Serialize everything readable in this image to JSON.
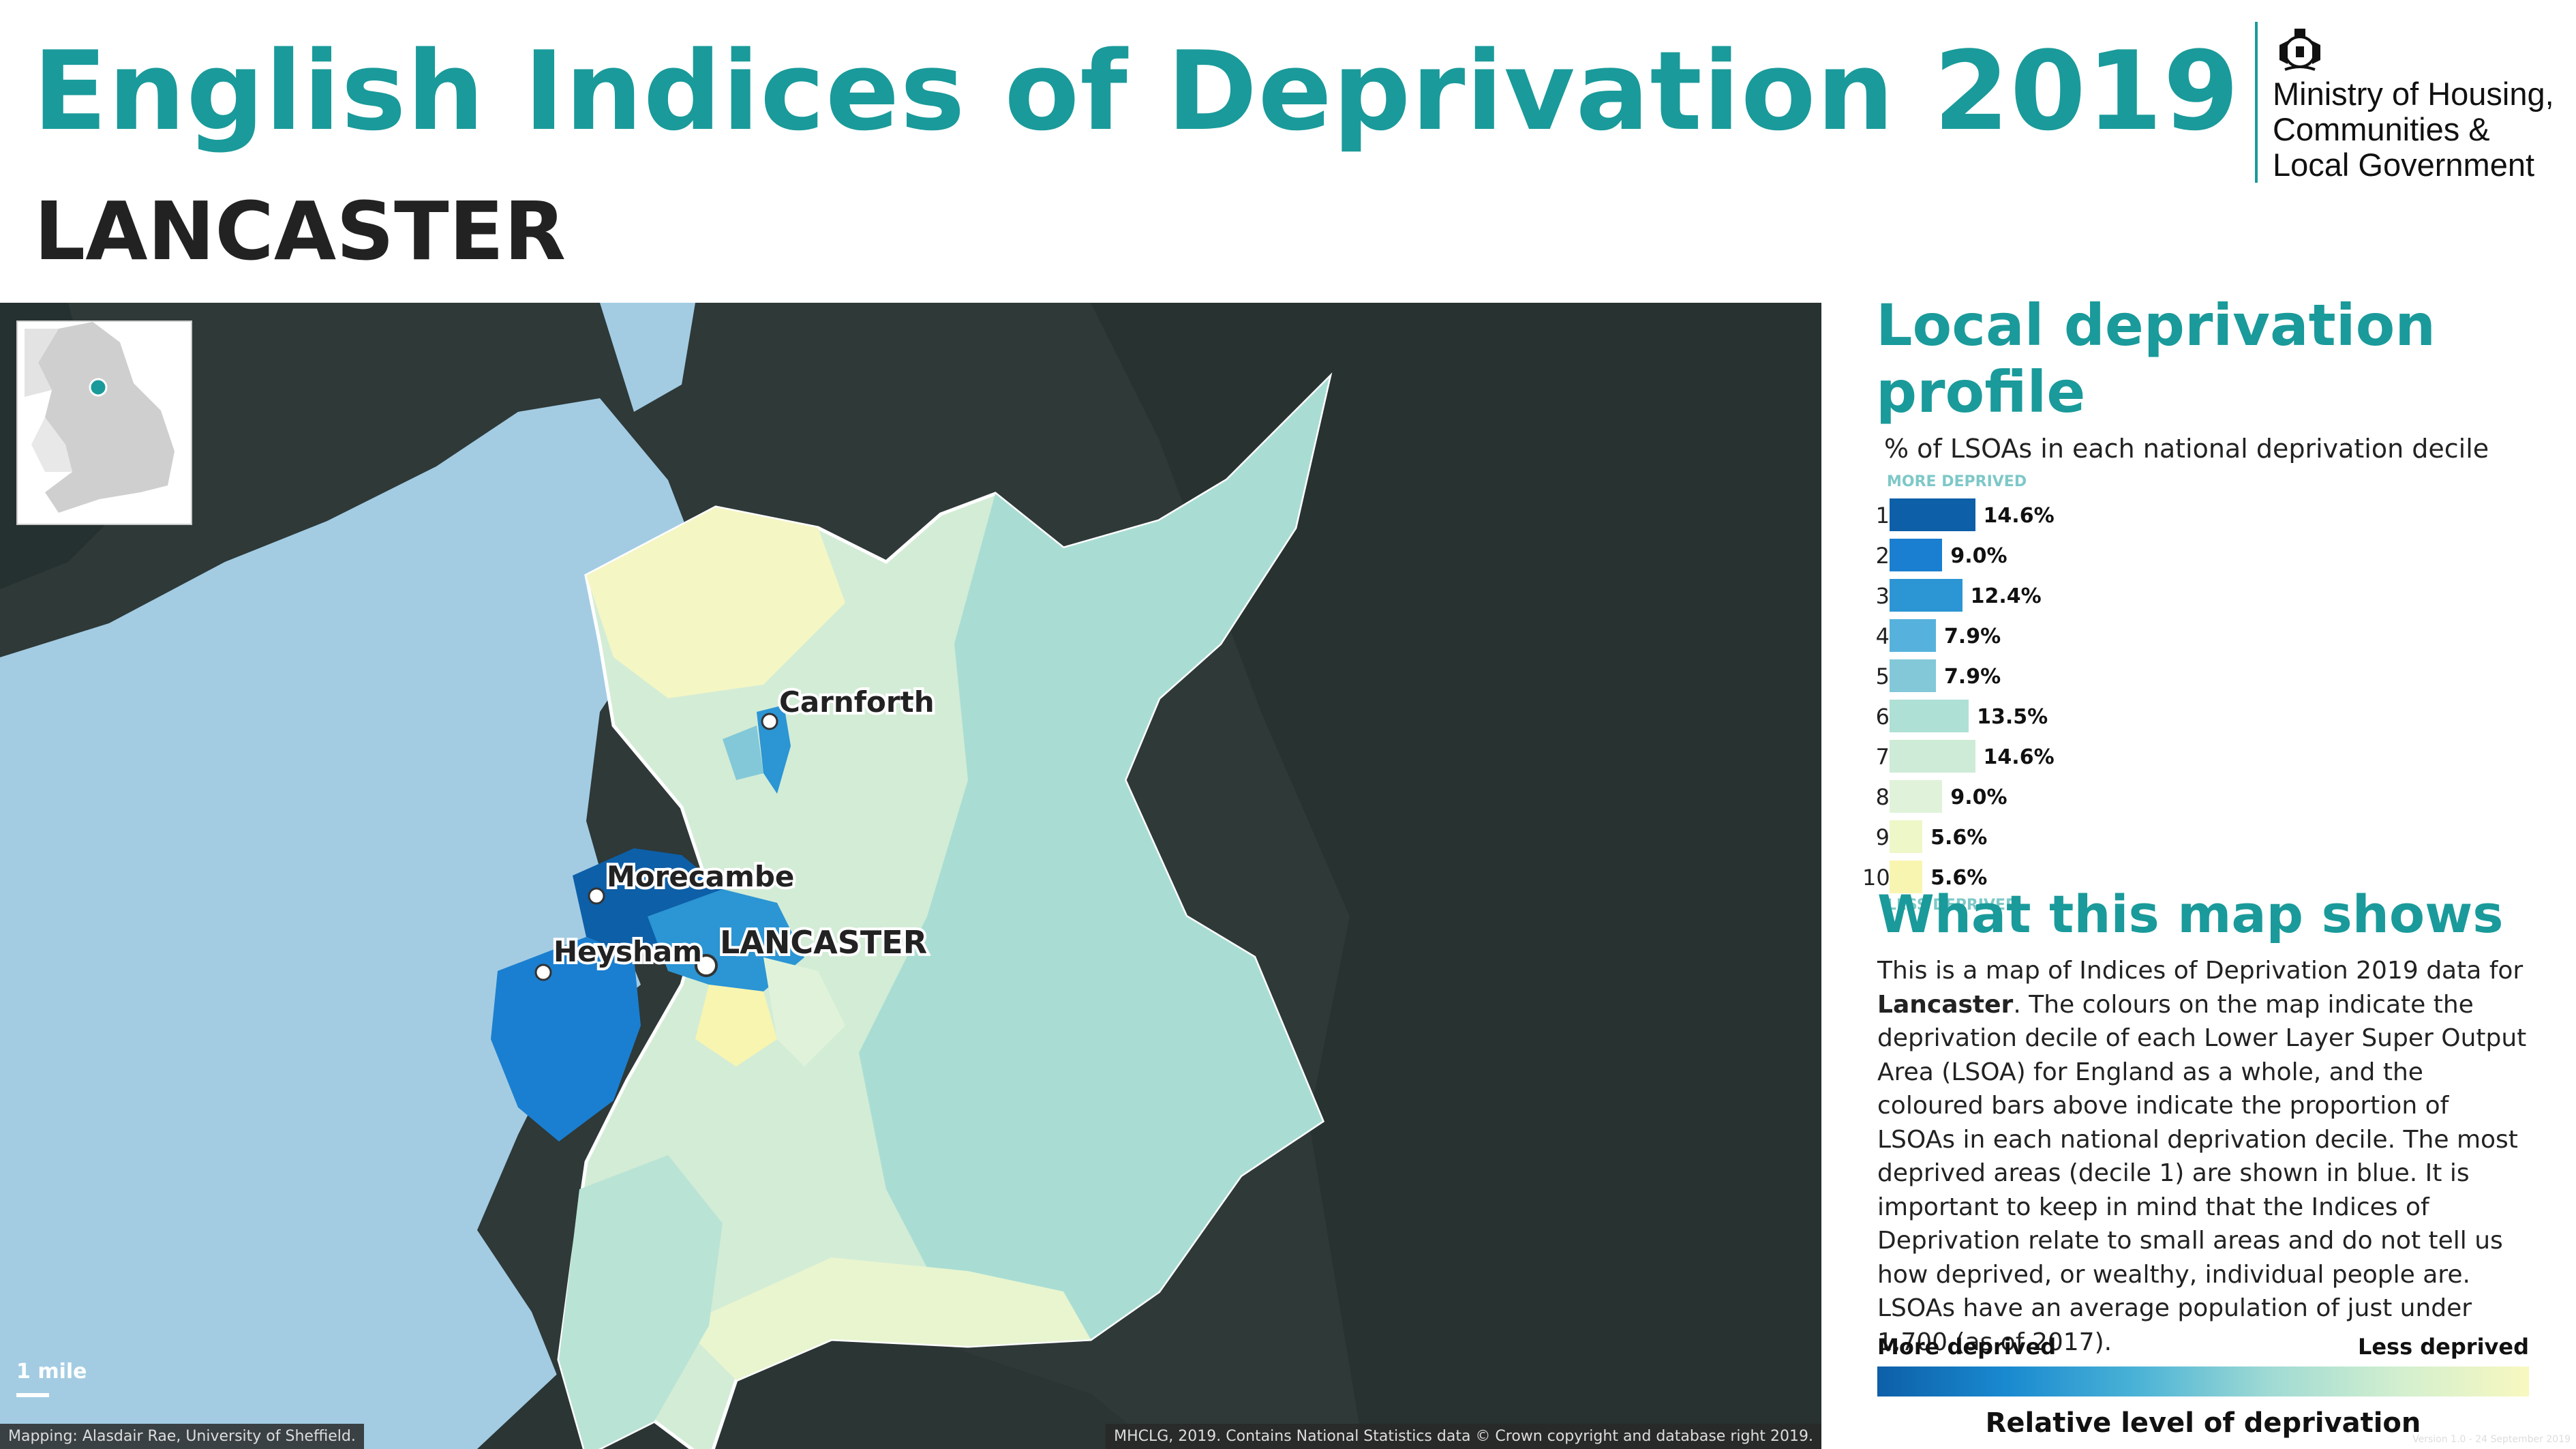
{
  "header": {
    "title": "English Indices of Deprivation 2019",
    "area": "LANCASTER",
    "logo_text": [
      "Ministry of Housing,",
      "Communities &",
      "Local Government"
    ]
  },
  "map": {
    "places": [
      {
        "name": "Carnforth"
      },
      {
        "name": "Morecambe"
      },
      {
        "name": "Heysham"
      },
      {
        "name": "LANCASTER"
      }
    ],
    "scale_label": "1 mile",
    "credit_left": "Mapping: Alasdair Rae, University of Sheffield.",
    "credit_right": "MHCLG, 2019. Contains National Statistics data © Crown copyright and database right 2019."
  },
  "profile": {
    "title": "Local deprivation profile",
    "subtitle": "% of LSOAs in each national deprivation decile",
    "top_tag": "MORE DEPRIVED",
    "bottom_tag": "LESS DEPRIVED",
    "deciles": [
      {
        "decile": "1",
        "pct": 14.6,
        "label": "14.6%",
        "color": "#0d5fa8"
      },
      {
        "decile": "2",
        "pct": 9.0,
        "label": "9.0%",
        "color": "#1a7fd0"
      },
      {
        "decile": "3",
        "pct": 12.4,
        "label": "12.4%",
        "color": "#2c95d4"
      },
      {
        "decile": "4",
        "pct": 7.9,
        "label": "7.9%",
        "color": "#56b2dc"
      },
      {
        "decile": "5",
        "pct": 7.9,
        "label": "7.9%",
        "color": "#82c8d8"
      },
      {
        "decile": "6",
        "pct": 13.5,
        "label": "13.5%",
        "color": "#aee0d6"
      },
      {
        "decile": "7",
        "pct": 14.6,
        "label": "14.6%",
        "color": "#cdebd6"
      },
      {
        "decile": "8",
        "pct": 9.0,
        "label": "9.0%",
        "color": "#e0f3da"
      },
      {
        "decile": "9",
        "pct": 5.6,
        "label": "5.6%",
        "color": "#eef7c8"
      },
      {
        "decile": "10",
        "pct": 5.6,
        "label": "5.6%",
        "color": "#f8f5b0"
      }
    ]
  },
  "what": {
    "title": "What this map shows",
    "text_before": "This is a map of Indices of Deprivation 2019 data for ",
    "area_bold": "Lancaster",
    "text_after": ". The colours on the map indicate the deprivation decile of each Lower Layer Super Output Area (LSOA) for England as a whole, and the coloured bars above indicate the proportion of LSOAs in each national deprivation decile. The most deprived areas (decile 1) are shown in blue. It is important to keep in mind that the Indices of Deprivation relate to small areas and do not tell us how deprived, or wealthy, individual people are. LSOAs have an average population of just under 1,700 (as of 2017)."
  },
  "legend": {
    "more": "More deprived",
    "less": "Less deprived",
    "caption": "Relative level of deprivation"
  },
  "version": "Version 1.0 - 24 September 2019"
}
